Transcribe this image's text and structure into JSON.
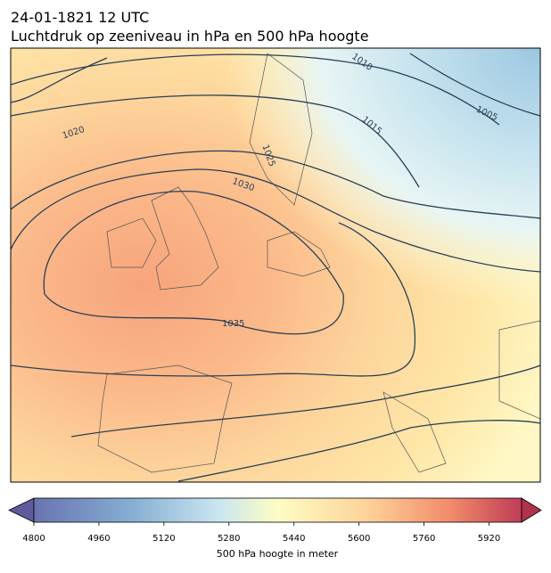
{
  "header": {
    "date": "24-01-1821 12 UTC",
    "title": "Luchtdruk op zeeniveau in hPa en 500 hPa hoogte"
  },
  "isobar_labels": [
    "1005",
    "1010",
    "1015",
    "1020",
    "1025",
    "1030",
    "1035"
  ],
  "colorbar": {
    "label": "500 hPa hoogte in meter",
    "range": [
      4800,
      6000
    ],
    "ticks": [
      4800,
      4960,
      5120,
      5280,
      5440,
      5600,
      5760,
      5920
    ]
  }
}
